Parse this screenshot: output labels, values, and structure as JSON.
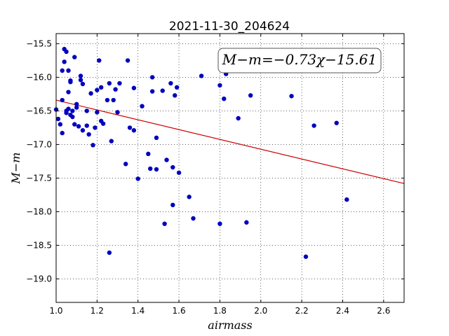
{
  "chart_data": {
    "type": "scatter",
    "title": "2021-11-30_204624",
    "xlabel": "airmass",
    "ylabel": "M−m",
    "xlim": [
      1.0,
      2.7
    ],
    "ylim": [
      -19.35,
      -15.35
    ],
    "x_ticks": [
      "1.0",
      "1.2",
      "1.4",
      "1.6",
      "1.8",
      "2.0",
      "2.2",
      "2.4",
      "2.6"
    ],
    "y_ticks": [
      "−15.5",
      "−16.0",
      "−16.5",
      "−17.0",
      "−17.5",
      "−18.0",
      "−18.5",
      "−19.0"
    ],
    "grid": true,
    "annotation": "M−m=−0.73χ−15.61",
    "fit": {
      "slope": -0.73,
      "intercept": -15.61,
      "color": "#cc0000"
    },
    "point_color": "#0000bf",
    "points": [
      [
        1.0,
        -16.48
      ],
      [
        1.01,
        -16.62
      ],
      [
        1.02,
        -16.7
      ],
      [
        1.03,
        -16.34
      ],
      [
        1.03,
        -16.83
      ],
      [
        1.03,
        -15.9
      ],
      [
        1.04,
        -15.77
      ],
      [
        1.04,
        -15.58
      ],
      [
        1.05,
        -15.62
      ],
      [
        1.05,
        -16.53
      ],
      [
        1.05,
        -16.5
      ],
      [
        1.06,
        -16.47
      ],
      [
        1.06,
        -16.22
      ],
      [
        1.06,
        -15.9
      ],
      [
        1.07,
        -16.07
      ],
      [
        1.07,
        -16.05
      ],
      [
        1.07,
        -16.56
      ],
      [
        1.08,
        -16.5
      ],
      [
        1.08,
        -16.59
      ],
      [
        1.09,
        -15.7
      ],
      [
        1.09,
        -16.7
      ],
      [
        1.1,
        -16.4
      ],
      [
        1.1,
        -16.45
      ],
      [
        1.11,
        -16.73
      ],
      [
        1.12,
        -16.04
      ],
      [
        1.12,
        -15.98
      ],
      [
        1.13,
        -16.79
      ],
      [
        1.13,
        -16.1
      ],
      [
        1.15,
        -16.5
      ],
      [
        1.15,
        -16.72
      ],
      [
        1.16,
        -16.85
      ],
      [
        1.17,
        -16.24
      ],
      [
        1.18,
        -17.01
      ],
      [
        1.19,
        -16.75
      ],
      [
        1.2,
        -16.19
      ],
      [
        1.2,
        -16.52
      ],
      [
        1.21,
        -15.75
      ],
      [
        1.22,
        -16.15
      ],
      [
        1.22,
        -16.65
      ],
      [
        1.23,
        -16.69
      ],
      [
        1.25,
        -16.34
      ],
      [
        1.26,
        -16.09
      ],
      [
        1.26,
        -18.61
      ],
      [
        1.27,
        -16.95
      ],
      [
        1.28,
        -16.34
      ],
      [
        1.29,
        -16.18
      ],
      [
        1.3,
        -16.52
      ],
      [
        1.31,
        -16.09
      ],
      [
        1.34,
        -17.29
      ],
      [
        1.35,
        -15.75
      ],
      [
        1.36,
        -16.75
      ],
      [
        1.38,
        -16.16
      ],
      [
        1.38,
        -16.79
      ],
      [
        1.4,
        -17.51
      ],
      [
        1.42,
        -16.43
      ],
      [
        1.45,
        -17.14
      ],
      [
        1.46,
        -17.36
      ],
      [
        1.47,
        -16.0
      ],
      [
        1.47,
        -16.21
      ],
      [
        1.49,
        -17.37
      ],
      [
        1.49,
        -16.9
      ],
      [
        1.52,
        -16.2
      ],
      [
        1.53,
        -18.18
      ],
      [
        1.54,
        -17.23
      ],
      [
        1.56,
        -16.09
      ],
      [
        1.57,
        -17.34
      ],
      [
        1.57,
        -17.9
      ],
      [
        1.58,
        -16.27
      ],
      [
        1.59,
        -16.15
      ],
      [
        1.6,
        -17.42
      ],
      [
        1.65,
        -17.78
      ],
      [
        1.67,
        -18.1
      ],
      [
        1.71,
        -15.98
      ],
      [
        1.8,
        -16.12
      ],
      [
        1.8,
        -18.18
      ],
      [
        1.82,
        -16.32
      ],
      [
        1.83,
        -15.95
      ],
      [
        1.89,
        -16.61
      ],
      [
        1.93,
        -18.16
      ],
      [
        1.95,
        -16.27
      ],
      [
        2.15,
        -16.28
      ],
      [
        2.22,
        -18.67
      ],
      [
        2.26,
        -16.72
      ],
      [
        2.37,
        -16.68
      ],
      [
        2.42,
        -17.82
      ]
    ]
  }
}
